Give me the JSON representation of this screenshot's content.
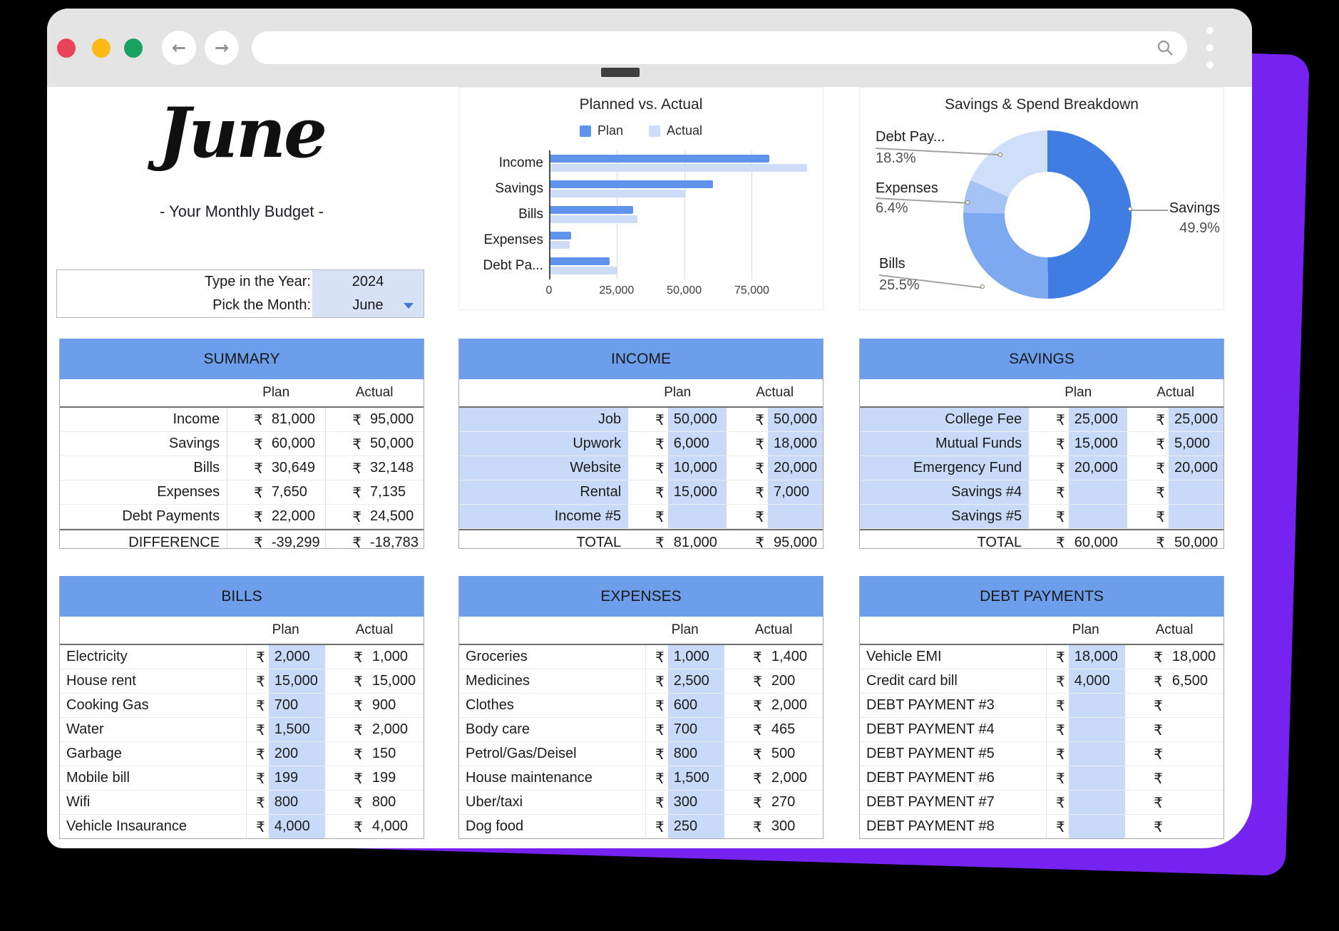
{
  "browser": {
    "url_value": "",
    "traffic_colors": [
      "#e9445c",
      "#fdb813",
      "#1aa260"
    ]
  },
  "header": {
    "month_title": "June",
    "subtitle": "- Your Monthly Budget -"
  },
  "picker": {
    "year_label": "Type in the Year:",
    "year_value": "2024",
    "month_label": "Pick the Month:",
    "month_value": "June"
  },
  "currency": "₹",
  "colors": {
    "header_blue": "#6d9eeb",
    "cell_blue": "#c9daf8",
    "picker_blue": "#d8e2f6",
    "purple_backdrop": "#7623f1"
  },
  "chart_data": [
    {
      "type": "bar",
      "orientation": "horizontal",
      "title": "Planned vs. Actual",
      "categories": [
        "Income",
        "Savings",
        "Bills",
        "Expenses",
        "Debt Pa..."
      ],
      "series": [
        {
          "name": "Plan",
          "color": "#6094ec",
          "values": [
            81000,
            60000,
            30649,
            7650,
            22000
          ]
        },
        {
          "name": "Actual",
          "color": "#cddcf7",
          "values": [
            95000,
            50000,
            32148,
            7135,
            24500
          ]
        }
      ],
      "x_ticks": [
        0,
        25000,
        50000,
        75000
      ],
      "x_tick_labels": [
        "0",
        "25,000",
        "50,000",
        "75,000"
      ],
      "xlim": [
        0,
        101500
      ],
      "legend_position": "top",
      "grid": true
    },
    {
      "type": "pie",
      "donut": true,
      "title": "Savings & Spend Breakdown",
      "slices": [
        {
          "label": "Savings",
          "pct": 49.9,
          "color": "#3f7de2"
        },
        {
          "label": "Bills",
          "pct": 25.5,
          "color": "#7ca9f0"
        },
        {
          "label": "Expenses",
          "pct": 6.4,
          "color": "#a6c3f5"
        },
        {
          "label": "Debt Pay...",
          "pct": 18.3,
          "color": "#cfdff9"
        }
      ]
    }
  ],
  "tables": {
    "summary": {
      "title": "SUMMARY",
      "col_headers": [
        "Plan",
        "Actual"
      ],
      "rows": [
        {
          "label": "Income",
          "plan": "81,000",
          "actual": "95,000"
        },
        {
          "label": "Savings",
          "plan": "60,000",
          "actual": "50,000"
        },
        {
          "label": "Bills",
          "plan": "30,649",
          "actual": "32,148"
        },
        {
          "label": "Expenses",
          "plan": "7,650",
          "actual": "7,135"
        },
        {
          "label": "Debt Payments",
          "plan": "22,000",
          "actual": "24,500"
        }
      ],
      "footer": {
        "label": "DIFFERENCE",
        "plan": "-39,299",
        "actual": "-18,783"
      }
    },
    "income": {
      "title": "INCOME",
      "col_headers": [
        "Plan",
        "Actual"
      ],
      "rows": [
        {
          "label": "Job",
          "plan": "50,000",
          "actual": "50,000"
        },
        {
          "label": "Upwork",
          "plan": "6,000",
          "actual": "18,000"
        },
        {
          "label": "Website",
          "plan": "10,000",
          "actual": "20,000"
        },
        {
          "label": "Rental",
          "plan": "15,000",
          "actual": "7,000"
        },
        {
          "label": "Income #5",
          "plan": "",
          "actual": ""
        }
      ],
      "footer": {
        "label": "TOTAL",
        "plan": "81,000",
        "actual": "95,000"
      }
    },
    "savings": {
      "title": "SAVINGS",
      "col_headers": [
        "Plan",
        "Actual"
      ],
      "rows": [
        {
          "label": "College Fee",
          "plan": "25,000",
          "actual": "25,000"
        },
        {
          "label": "Mutual Funds",
          "plan": "15,000",
          "actual": "5,000"
        },
        {
          "label": "Emergency Fund",
          "plan": "20,000",
          "actual": "20,000"
        },
        {
          "label": "Savings #4",
          "plan": "",
          "actual": ""
        },
        {
          "label": "Savings #5",
          "plan": "",
          "actual": ""
        }
      ],
      "footer": {
        "label": "TOTAL",
        "plan": "60,000",
        "actual": "50,000"
      }
    },
    "bills": {
      "title": "BILLS",
      "col_headers": [
        "Plan",
        "Actual"
      ],
      "rows": [
        {
          "label": "Electricity",
          "plan": "2,000",
          "actual": "1,000"
        },
        {
          "label": "House rent",
          "plan": "15,000",
          "actual": "15,000"
        },
        {
          "label": "Cooking Gas",
          "plan": "700",
          "actual": "900"
        },
        {
          "label": "Water",
          "plan": "1,500",
          "actual": "2,000"
        },
        {
          "label": "Garbage",
          "plan": "200",
          "actual": "150"
        },
        {
          "label": "Mobile bill",
          "plan": "199",
          "actual": "199"
        },
        {
          "label": "Wifi",
          "plan": "800",
          "actual": "800"
        },
        {
          "label": "Vehicle Insaurance",
          "plan": "4,000",
          "actual": "4,000"
        }
      ]
    },
    "expenses": {
      "title": "EXPENSES",
      "col_headers": [
        "Plan",
        "Actual"
      ],
      "rows": [
        {
          "label": "Groceries",
          "plan": "1,000",
          "actual": "1,400"
        },
        {
          "label": "Medicines",
          "plan": "2,500",
          "actual": "200"
        },
        {
          "label": "Clothes",
          "plan": "600",
          "actual": "2,000"
        },
        {
          "label": "Body care",
          "plan": "700",
          "actual": "465"
        },
        {
          "label": "Petrol/Gas/Deisel",
          "plan": "800",
          "actual": "500"
        },
        {
          "label": "House maintenance",
          "plan": "1,500",
          "actual": "2,000"
        },
        {
          "label": "Uber/taxi",
          "plan": "300",
          "actual": "270"
        },
        {
          "label": "Dog food",
          "plan": "250",
          "actual": "300"
        }
      ]
    },
    "debt": {
      "title": "DEBT PAYMENTS",
      "col_headers": [
        "Plan",
        "Actual"
      ],
      "rows": [
        {
          "label": "Vehicle EMI",
          "plan": "18,000",
          "actual": "18,000"
        },
        {
          "label": "Credit card bill",
          "plan": "4,000",
          "actual": "6,500"
        },
        {
          "label": "DEBT PAYMENT #3",
          "plan": "",
          "actual": ""
        },
        {
          "label": "DEBT PAYMENT #4",
          "plan": "",
          "actual": ""
        },
        {
          "label": "DEBT PAYMENT #5",
          "plan": "",
          "actual": ""
        },
        {
          "label": "DEBT PAYMENT #6",
          "plan": "",
          "actual": ""
        },
        {
          "label": "DEBT PAYMENT #7",
          "plan": "",
          "actual": ""
        },
        {
          "label": "DEBT PAYMENT #8",
          "plan": "",
          "actual": ""
        }
      ]
    }
  }
}
